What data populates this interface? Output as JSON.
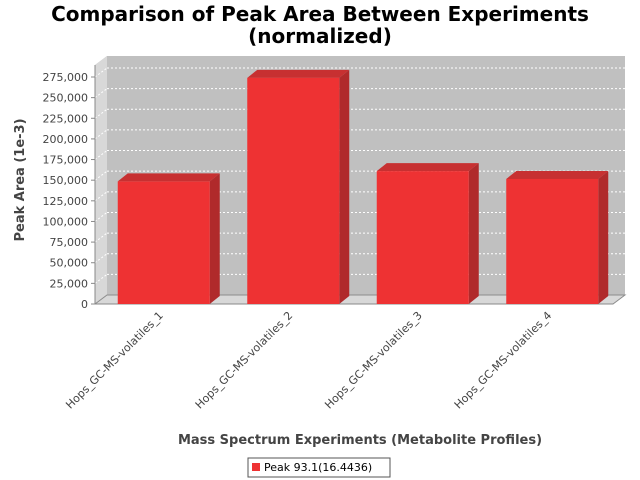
{
  "chart_data": {
    "type": "bar",
    "title_lines": [
      "Comparison of Peak Area Between Experiments",
      "(normalized)"
    ],
    "xlabel": "Mass Spectrum Experiments (Metabolite Profiles)",
    "ylabel": "Peak Area (1e-3)",
    "categories": [
      "Hops_GC-MS-volatiles_1",
      "Hops_GC-MS-volatiles_2",
      "Hops_GC-MS-volatiles_3",
      "Hops_GC-MS-volatiles_4"
    ],
    "series": [
      {
        "name": "Peak 93.1(16.4436)",
        "values": [
          148500,
          274000,
          161000,
          151500
        ],
        "color": "#ee3233"
      }
    ],
    "ylim": [
      0,
      287500
    ],
    "yticks": [
      0,
      25000,
      50000,
      75000,
      100000,
      125000,
      150000,
      175000,
      200000,
      225000,
      250000,
      275000
    ],
    "ytick_labels": [
      "0",
      "25,000",
      "50,000",
      "75,000",
      "100,000",
      "125,000",
      "150,000",
      "175,000",
      "200,000",
      "225,000",
      "250,000",
      "275,000"
    ],
    "grid": true,
    "legend_position": "bottom",
    "plot_background": "#c0c0c0",
    "wall_color": "#d8d8d8"
  }
}
